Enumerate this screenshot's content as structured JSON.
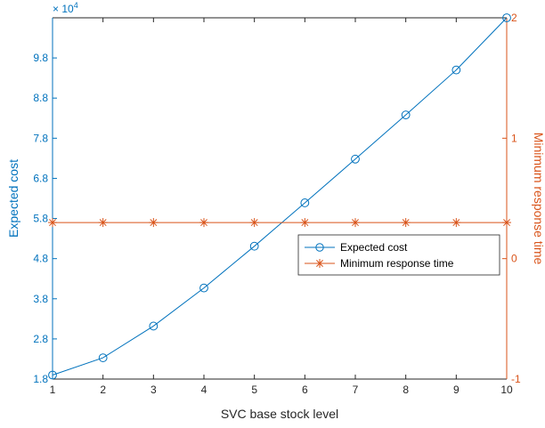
{
  "chart_data": {
    "type": "line",
    "x": [
      1,
      2,
      3,
      4,
      5,
      6,
      7,
      8,
      9,
      10
    ],
    "xlabel": "SVC base stock level",
    "xlim": [
      1,
      10
    ],
    "xticks": [
      "1",
      "2",
      "3",
      "4",
      "5",
      "6",
      "7",
      "8",
      "9",
      "10"
    ],
    "left_axis": {
      "label": "Expected cost",
      "lim": [
        1.8,
        10.8
      ],
      "ticks": [
        "1.8",
        "2.8",
        "3.8",
        "4.8",
        "5.8",
        "6.8",
        "7.8",
        "8.8",
        "9.8"
      ],
      "exponent_label": "× 10",
      "exponent_power": "4",
      "color": "#0072BD"
    },
    "right_axis": {
      "label": "Minimum response time",
      "lim": [
        -1,
        2
      ],
      "ticks": [
        "-1",
        "0",
        "1",
        "2"
      ],
      "color": "#D95319"
    },
    "series": [
      {
        "name": "Expected cost",
        "axis": "left",
        "marker": "circle",
        "color": "#0072BD",
        "values": [
          1.9,
          2.33,
          3.12,
          4.07,
          5.11,
          6.19,
          7.28,
          8.38,
          9.5,
          10.8
        ]
      },
      {
        "name": "Minimum response time",
        "axis": "right",
        "marker": "asterisk",
        "color": "#D95319",
        "values": [
          0.3,
          0.3,
          0.3,
          0.3,
          0.3,
          0.3,
          0.3,
          0.3,
          0.3,
          0.3
        ]
      }
    ],
    "legend_position": "center-right",
    "grid": false
  }
}
